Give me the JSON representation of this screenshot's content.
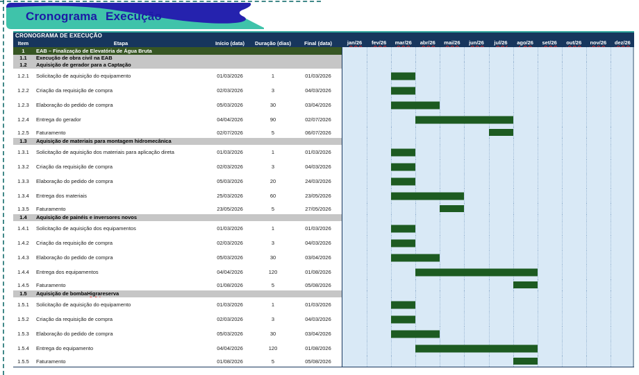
{
  "banner": {
    "title": "Cronograma Execução",
    "teal_color": "#3fc3aa",
    "blue_color": "#2522ae",
    "title_color": "#1c1aa5"
  },
  "table": {
    "title": "CRONOGRAMA DE EXECUÇÃO",
    "headers": {
      "item": "Item",
      "etapa": "Etapa",
      "inicio": "Início (data)",
      "duracao": "Duração (dias)",
      "final": "Final (data)"
    }
  },
  "chart_data": {
    "type": "gantt",
    "title": "CRONOGRAMA DE EXECUÇÃO",
    "bar_color": "#1d5b21",
    "timeline_note": "bar = [start_month_index, end_month_index] inclusive, 0 = jan/26",
    "months": [
      "jan/26",
      "fev/26",
      "mar/26",
      "abr/26",
      "mai/26",
      "jun/26",
      "jul/26",
      "ago/26",
      "set/26",
      "out/26",
      "nov/26",
      "dez/26"
    ],
    "rows": [
      {
        "kind": "level1",
        "item": "1",
        "etapa": "EAB – Finalização de Elevatória de Água Bruta"
      },
      {
        "kind": "section",
        "item": "1.1",
        "etapa": "Execução de obra civil na EAB"
      },
      {
        "kind": "section",
        "item": "1.2",
        "etapa": "Aquisição de gerador para a Captação"
      },
      {
        "kind": "task",
        "item": "1.2.1",
        "etapa": "Solicitação de aquisição do equipamento",
        "inicio": "01/03/2026",
        "duracao": "1",
        "final": "01/03/2026",
        "bar": [
          2,
          2
        ]
      },
      {
        "kind": "task",
        "item": "1.2.2",
        "etapa": "Criação da requisição de compra",
        "inicio": "02/03/2026",
        "duracao": "3",
        "final": "04/03/2026",
        "bar": [
          2,
          2
        ]
      },
      {
        "kind": "task",
        "item": "1.2.3",
        "etapa": "Elaboração do pedido de compra",
        "inicio": "05/03/2026",
        "duracao": "30",
        "final": "03/04/2026",
        "bar": [
          2,
          3
        ]
      },
      {
        "kind": "task",
        "item": "1.2.4",
        "etapa": "Entrega do gerador",
        "inicio": "04/04/2026",
        "duracao": "90",
        "final": "02/07/2026",
        "bar": [
          3,
          6
        ]
      },
      {
        "kind": "task",
        "item": "1.2.5",
        "etapa": "Faturamento",
        "inicio": "02/07/2026",
        "duracao": "5",
        "final": "06/07/2026",
        "bar": [
          6,
          6
        ],
        "compact": true
      },
      {
        "kind": "section",
        "item": "1.3",
        "etapa": "Aquisição de materiais para montagem hidromecânica"
      },
      {
        "kind": "task",
        "item": "1.3.1",
        "etapa": "Solicitação de aquisição dos materiais para aplicação direta",
        "inicio": "01/03/2026",
        "duracao": "1",
        "final": "01/03/2026",
        "bar": [
          2,
          2
        ]
      },
      {
        "kind": "task",
        "item": "1.3.2",
        "etapa": "Criação da requisição de compra",
        "inicio": "02/03/2026",
        "duracao": "3",
        "final": "04/03/2026",
        "bar": [
          2,
          2
        ]
      },
      {
        "kind": "task",
        "item": "1.3.3",
        "etapa": "Elaboração do pedido de compra",
        "inicio": "05/03/2026",
        "duracao": "20",
        "final": "24/03/2026",
        "bar": [
          2,
          2
        ]
      },
      {
        "kind": "task",
        "item": "1.3.4",
        "etapa": "Entrega dos materiais",
        "inicio": "25/03/2026",
        "duracao": "60",
        "final": "23/05/2026",
        "bar": [
          2,
          4
        ]
      },
      {
        "kind": "task",
        "item": "1.3.5",
        "etapa": "Faturamento",
        "inicio": "23/05/2026",
        "duracao": "5",
        "final": "27/05/2026",
        "bar": [
          4,
          4
        ],
        "compact": true
      },
      {
        "kind": "section",
        "item": "1.4",
        "etapa": "Aquisição de painéis e inversores novos"
      },
      {
        "kind": "task",
        "item": "1.4.1",
        "etapa": "Solicitação de aquisição dos equipamentos",
        "inicio": "01/03/2026",
        "duracao": "1",
        "final": "01/03/2026",
        "bar": [
          2,
          2
        ]
      },
      {
        "kind": "task",
        "item": "1.4.2",
        "etapa": "Criação da requisição de compra",
        "inicio": "02/03/2026",
        "duracao": "3",
        "final": "04/03/2026",
        "bar": [
          2,
          2
        ]
      },
      {
        "kind": "task",
        "item": "1.4.3",
        "etapa": "Elaboração do pedido de compra",
        "inicio": "05/03/2026",
        "duracao": "30",
        "final": "03/04/2026",
        "bar": [
          2,
          3
        ]
      },
      {
        "kind": "task",
        "item": "1.4.4",
        "etapa": "Entrega dos equipamentos",
        "inicio": "04/04/2026",
        "duracao": "120",
        "final": "01/08/2026",
        "bar": [
          3,
          7
        ]
      },
      {
        "kind": "task",
        "item": "1.4.5",
        "etapa": "Faturamento",
        "inicio": "01/08/2026",
        "duracao": "5",
        "final": "05/08/2026",
        "bar": [
          7,
          7
        ],
        "compact": true
      },
      {
        "kind": "section",
        "item": "1.5",
        "etapa": "Aquisição de bomba Higra reserva",
        "misspell": "Higra"
      },
      {
        "kind": "task",
        "item": "1.5.1",
        "etapa": "Solicitação de aquisição do equipamento",
        "inicio": "01/03/2026",
        "duracao": "1",
        "final": "01/03/2026",
        "bar": [
          2,
          2
        ]
      },
      {
        "kind": "task",
        "item": "1.5.2",
        "etapa": "Criação da requisição de compra",
        "inicio": "02/03/2026",
        "duracao": "3",
        "final": "04/03/2026",
        "bar": [
          2,
          2
        ]
      },
      {
        "kind": "task",
        "item": "1.5.3",
        "etapa": "Elaboração do pedido de compra",
        "inicio": "05/03/2026",
        "duracao": "30",
        "final": "03/04/2026",
        "bar": [
          2,
          3
        ]
      },
      {
        "kind": "task",
        "item": "1.5.4",
        "etapa": "Entrega do equipamento",
        "inicio": "04/04/2026",
        "duracao": "120",
        "final": "01/08/2026",
        "bar": [
          3,
          7
        ]
      },
      {
        "kind": "task",
        "item": "1.5.5",
        "etapa": "Faturamento",
        "inicio": "01/08/2026",
        "duracao": "5",
        "final": "05/08/2026",
        "bar": [
          7,
          7
        ],
        "compact": true
      }
    ]
  }
}
